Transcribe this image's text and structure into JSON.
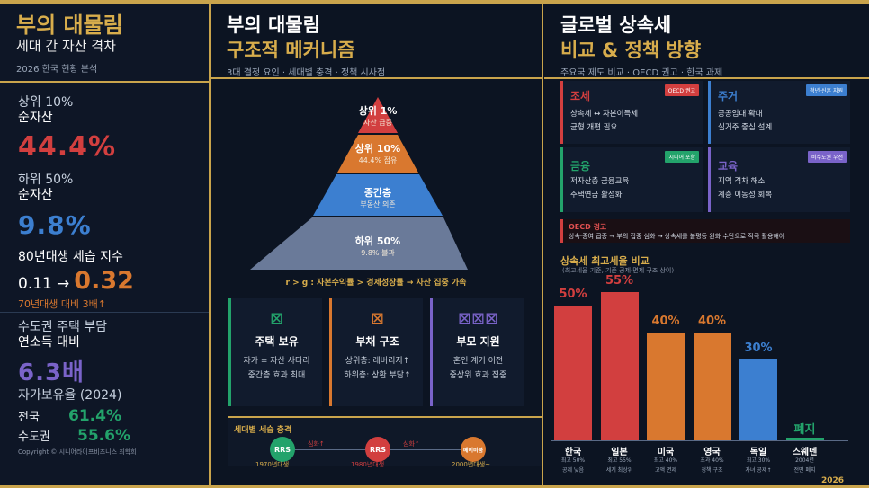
{
  "left": {
    "title": "부의 대물림",
    "subtitle": "세대 간 자산 격차",
    "caption": "2026 한국 현황 분석",
    "top10": {
      "label1": "상위 10%",
      "label2": "순자산",
      "value": "44.4%"
    },
    "bottom50": {
      "label1": "하위 50%",
      "label2": "순자산",
      "value": "9.8%"
    },
    "index": {
      "label": "80년대생 세습 지수",
      "from": "0.11",
      "arrow": "→",
      "to": "0.32",
      "note": "70년대생 대비 3배↑"
    },
    "housing": {
      "label1": "수도권 주택 부담",
      "label2": "연소득 대비",
      "value": "6.3배"
    },
    "own": {
      "label": "자가보유율 (2024)",
      "national_label": "전국",
      "national_value": "61.4%",
      "capital_label": "수도권",
      "capital_value": "55.6%"
    },
    "copyright": "Copyright © 시니어라이프비즈니스 최학희"
  },
  "middle": {
    "title": "부의 대물림",
    "subtitle": "구조적 메커니즘",
    "caption": "3대 결정 요인 · 세대별 충격 · 정책 시사점",
    "pyramid": [
      {
        "title": "상위 1%",
        "sub": "자산 급증",
        "color": "#d23f3f"
      },
      {
        "title": "상위 10%",
        "sub": "44.4% 점유",
        "color": "#d9782f"
      },
      {
        "title": "중간층",
        "sub": "부동산 의존",
        "color": "#3c7fd0"
      },
      {
        "title": "하위 50%",
        "sub": "9.8% 불과",
        "color": "#6a7a99"
      }
    ],
    "formula": "r > g : 자본수익률 > 경제성장률 → 자산 집중 가속",
    "cards": [
      {
        "title": "주택 보유",
        "line1": "자가 = 자산 사다리",
        "line2": "중간층 효과 최대",
        "color": "#23a36b",
        "icon": "⊠"
      },
      {
        "title": "부채 구조",
        "line1": "상위층: 레버리지↑",
        "line2": "하위층: 상환 부담↑",
        "color": "#d9782f",
        "icon": "⊠"
      },
      {
        "title": "부모 지원",
        "line1": "혼인 계기 이전",
        "line2": "중상위 효과 집중",
        "color": "#7a63c9",
        "icon": "⊠⊠⊠"
      }
    ],
    "shock": {
      "title": "세대별 세습 충격",
      "g1": {
        "badge": "RRS",
        "year": "1970년대생",
        "color": "#23a36b"
      },
      "a1": "심화↑",
      "g2": {
        "badge": "RRS",
        "year": "1980년대생",
        "color": "#d23f3f"
      },
      "a2": "심화↑",
      "g3": {
        "badge": "베이비붐",
        "year": "2000년대생~",
        "color": "#d9782f"
      }
    }
  },
  "right": {
    "title": "글로벌 상속세",
    "subtitle": "비교 & 정책 방향",
    "caption": "주요국 제도 비교 · OECD 권고 · 한국 과제",
    "policies": [
      {
        "title": "조세",
        "tag": "OECD 권고",
        "line1": "상속세 ↔ 자본이득세",
        "line2": "균형 개편 필요",
        "color": "#d23f3f"
      },
      {
        "title": "주거",
        "tag": "청년·신혼 지원",
        "line1": "공공임대 확대",
        "line2": "실거주 중심 설계",
        "color": "#3c7fd0"
      },
      {
        "title": "금융",
        "tag": "시니어 포함",
        "line1": "저자산층 금융교육",
        "line2": "주택연금 활성화",
        "color": "#23a36b"
      },
      {
        "title": "교육",
        "tag": "비수도권 우선",
        "line1": "지역 격차 해소",
        "line2": "계층 이동성 회복",
        "color": "#7a63c9"
      }
    ],
    "oecd": {
      "title": "OECD 경고",
      "text": "상속·증여 급증 → 부의 집중 심화 → 상속세를 불평등 완화 수단으로 적극 활용해야"
    },
    "chart_title": "상속세 최고세율 비교",
    "chart_caption": "(최고세율 기준, 기준 공제·면제 구조 상이)",
    "year": "2026"
  },
  "chart_data": {
    "type": "bar",
    "title": "상속세 최고세율 비교",
    "subtitle": "(최고세율 기준, 기준 공제·면제 구조 상이)",
    "ylim": [
      0,
      60
    ],
    "categories": [
      "한국",
      "일본",
      "미국",
      "영국",
      "독일",
      "스웨덴"
    ],
    "values": [
      50,
      55,
      40,
      40,
      30,
      0
    ],
    "labels": [
      "50%",
      "55%",
      "40%",
      "40%",
      "30%",
      "폐지"
    ],
    "colors": [
      "#d23f3f",
      "#d23f3f",
      "#d9782f",
      "#d9782f",
      "#3c7fd0",
      "#23a36b"
    ],
    "notes": [
      [
        "최고 50%",
        "공제 낮음"
      ],
      [
        "최고 55%",
        "세계 최상위"
      ],
      [
        "최고 40%",
        "고액 면제"
      ],
      [
        "초과 40%",
        "정책 구조"
      ],
      [
        "최고 30%",
        "자녀 공제↑"
      ],
      [
        "2004년",
        "전면 폐지"
      ]
    ]
  }
}
